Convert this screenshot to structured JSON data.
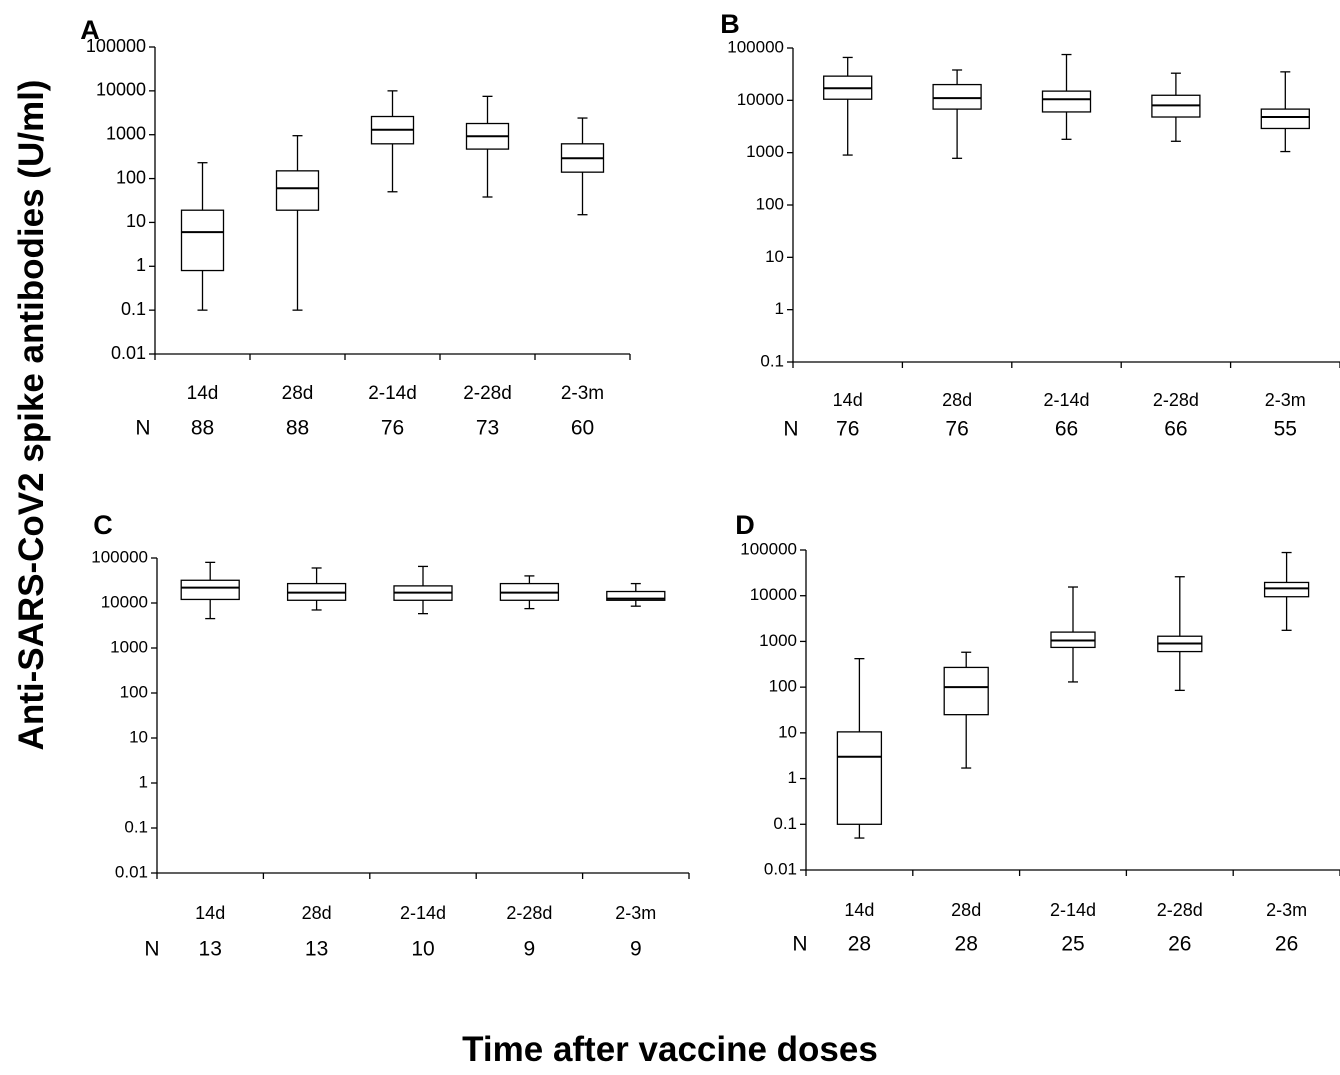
{
  "figure": {
    "y_axis_title": "Anti-SARS-CoV2 spike antibodies (U/ml)",
    "x_axis_title": "Time after vaccine doses",
    "n_label": "N"
  },
  "chart_data": [
    {
      "panel": "A",
      "type": "box",
      "scale": "log",
      "ylim": [
        0.01,
        100000
      ],
      "y_ticks": [
        "0.01",
        "0.1",
        "1",
        "10",
        "100",
        "1000",
        "10000",
        "100000"
      ],
      "categories": [
        "14d",
        "28d",
        "2-14d",
        "2-28d",
        "2-3m"
      ],
      "n": [
        "88",
        "88",
        "76",
        "73",
        "60"
      ],
      "boxes": [
        {
          "min": 0.1,
          "q1": 0.8,
          "median": 6,
          "q3": 19,
          "max": 230
        },
        {
          "min": 0.1,
          "q1": 19,
          "median": 60,
          "q3": 150,
          "max": 950
        },
        {
          "min": 50,
          "q1": 620,
          "median": 1300,
          "q3": 2600,
          "max": 10000
        },
        {
          "min": 38,
          "q1": 470,
          "median": 920,
          "q3": 1800,
          "max": 7500
        },
        {
          "min": 15,
          "q1": 140,
          "median": 290,
          "q3": 620,
          "max": 2400
        }
      ]
    },
    {
      "panel": "B",
      "type": "box",
      "scale": "log",
      "ylim": [
        0.1,
        100000
      ],
      "y_ticks": [
        "0.1",
        "1",
        "10",
        "100",
        "1000",
        "10000",
        "100000"
      ],
      "categories": [
        "14d",
        "28d",
        "2-14d",
        "2-28d",
        "2-3m"
      ],
      "n": [
        "76",
        "76",
        "66",
        "66",
        "55"
      ],
      "boxes": [
        {
          "min": 900,
          "q1": 10500,
          "median": 17000,
          "q3": 29000,
          "max": 66000
        },
        {
          "min": 780,
          "q1": 6800,
          "median": 11000,
          "q3": 20000,
          "max": 38000
        },
        {
          "min": 1800,
          "q1": 6000,
          "median": 10500,
          "q3": 15000,
          "max": 75000
        },
        {
          "min": 1650,
          "q1": 4800,
          "median": 8000,
          "q3": 12500,
          "max": 33000
        },
        {
          "min": 1050,
          "q1": 2900,
          "median": 4800,
          "q3": 6800,
          "max": 35000
        }
      ]
    },
    {
      "panel": "C",
      "type": "box",
      "scale": "log",
      "ylim": [
        0.01,
        100000
      ],
      "y_ticks": [
        "0.01",
        "0.1",
        "1",
        "10",
        "100",
        "1000",
        "10000",
        "100000"
      ],
      "categories": [
        "14d",
        "28d",
        "2-14d",
        "2-28d",
        "2-3m"
      ],
      "n": [
        "13",
        "13",
        "10",
        "9",
        "9"
      ],
      "boxes": [
        {
          "min": 4500,
          "q1": 12000,
          "median": 22000,
          "q3": 32000,
          "max": 80000
        },
        {
          "min": 7000,
          "q1": 11500,
          "median": 17000,
          "q3": 27000,
          "max": 60000
        },
        {
          "min": 5800,
          "q1": 11500,
          "median": 17000,
          "q3": 24000,
          "max": 65000
        },
        {
          "min": 7500,
          "q1": 11500,
          "median": 17000,
          "q3": 27000,
          "max": 40000
        },
        {
          "min": 8500,
          "q1": 11500,
          "median": 12500,
          "q3": 18000,
          "max": 27000
        }
      ]
    },
    {
      "panel": "D",
      "type": "box",
      "scale": "log",
      "ylim": [
        0.01,
        100000
      ],
      "y_ticks": [
        "0.01",
        "0.1",
        "1",
        "10",
        "100",
        "1000",
        "10000",
        "100000"
      ],
      "categories": [
        "14d",
        "28d",
        "2-14d",
        "2-28d",
        "2-3m"
      ],
      "n": [
        "28",
        "28",
        "25",
        "26",
        "26"
      ],
      "boxes": [
        {
          "min": 0.05,
          "q1": 0.1,
          "median": 3,
          "q3": 10.5,
          "max": 420
        },
        {
          "min": 1.7,
          "q1": 25,
          "median": 100,
          "q3": 270,
          "max": 580
        },
        {
          "min": 130,
          "q1": 740,
          "median": 1050,
          "q3": 1600,
          "max": 15500
        },
        {
          "min": 85,
          "q1": 600,
          "median": 900,
          "q3": 1300,
          "max": 26000
        },
        {
          "min": 1750,
          "q1": 9500,
          "median": 14500,
          "q3": 19500,
          "max": 88000
        }
      ]
    }
  ]
}
